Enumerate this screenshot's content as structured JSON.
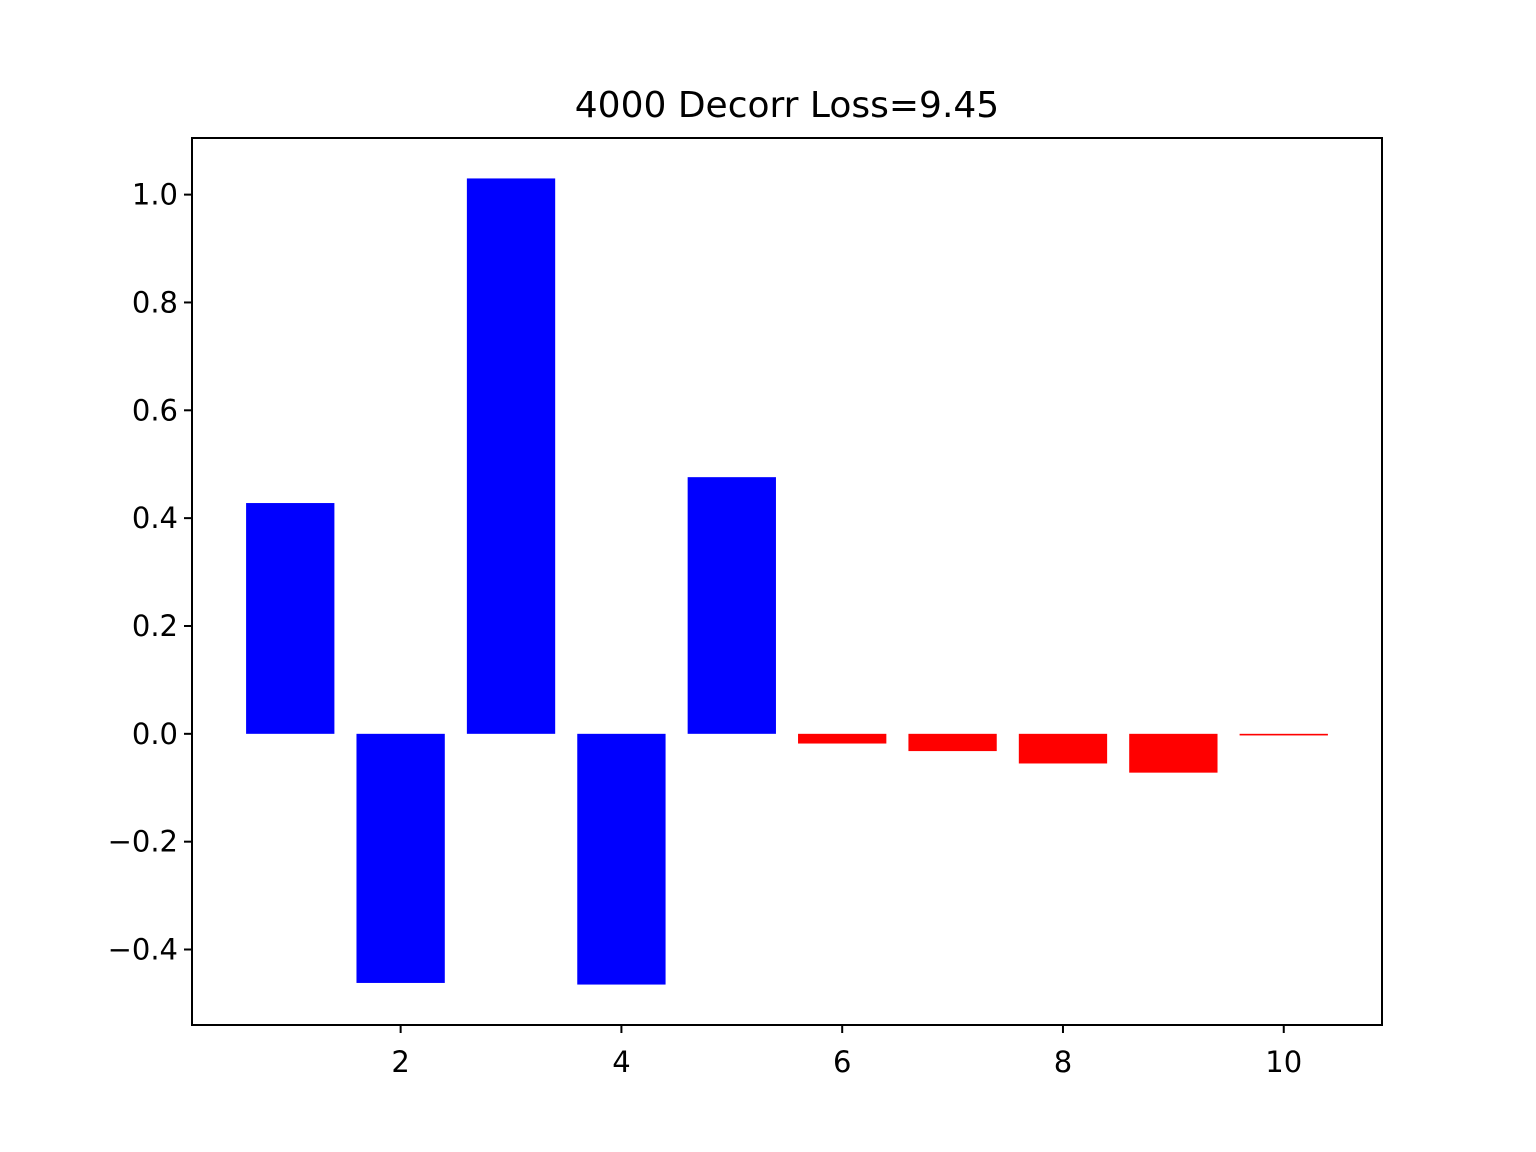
{
  "chart_data": {
    "type": "bar",
    "title": "4000 Decorr Loss=9.45",
    "xlabel": "",
    "ylabel": "",
    "x": [
      1,
      2,
      3,
      4,
      5,
      6,
      7,
      8,
      9,
      10
    ],
    "values": [
      0.428,
      -0.462,
      1.03,
      -0.465,
      0.476,
      -0.018,
      -0.032,
      -0.055,
      -0.072,
      -0.003
    ],
    "colors": [
      "#0000ff",
      "#0000ff",
      "#0000ff",
      "#0000ff",
      "#0000ff",
      "#ff0000",
      "#ff0000",
      "#ff0000",
      "#ff0000",
      "#ff0000"
    ],
    "xlim": [
      0.11,
      10.89
    ],
    "ylim": [
      -0.54,
      1.105
    ],
    "xticks": [
      2,
      4,
      6,
      8,
      10
    ],
    "xtick_labels": [
      "2",
      "4",
      "6",
      "8",
      "10"
    ],
    "yticks": [
      -0.4,
      -0.2,
      0.0,
      0.2,
      0.4,
      0.6,
      0.8,
      1.0
    ],
    "ytick_labels": [
      "−0.4",
      "−0.2",
      "0.0",
      "0.2",
      "0.4",
      "0.6",
      "0.8",
      "1.0"
    ],
    "bar_width": 0.8,
    "grid": false,
    "legend": "none"
  }
}
